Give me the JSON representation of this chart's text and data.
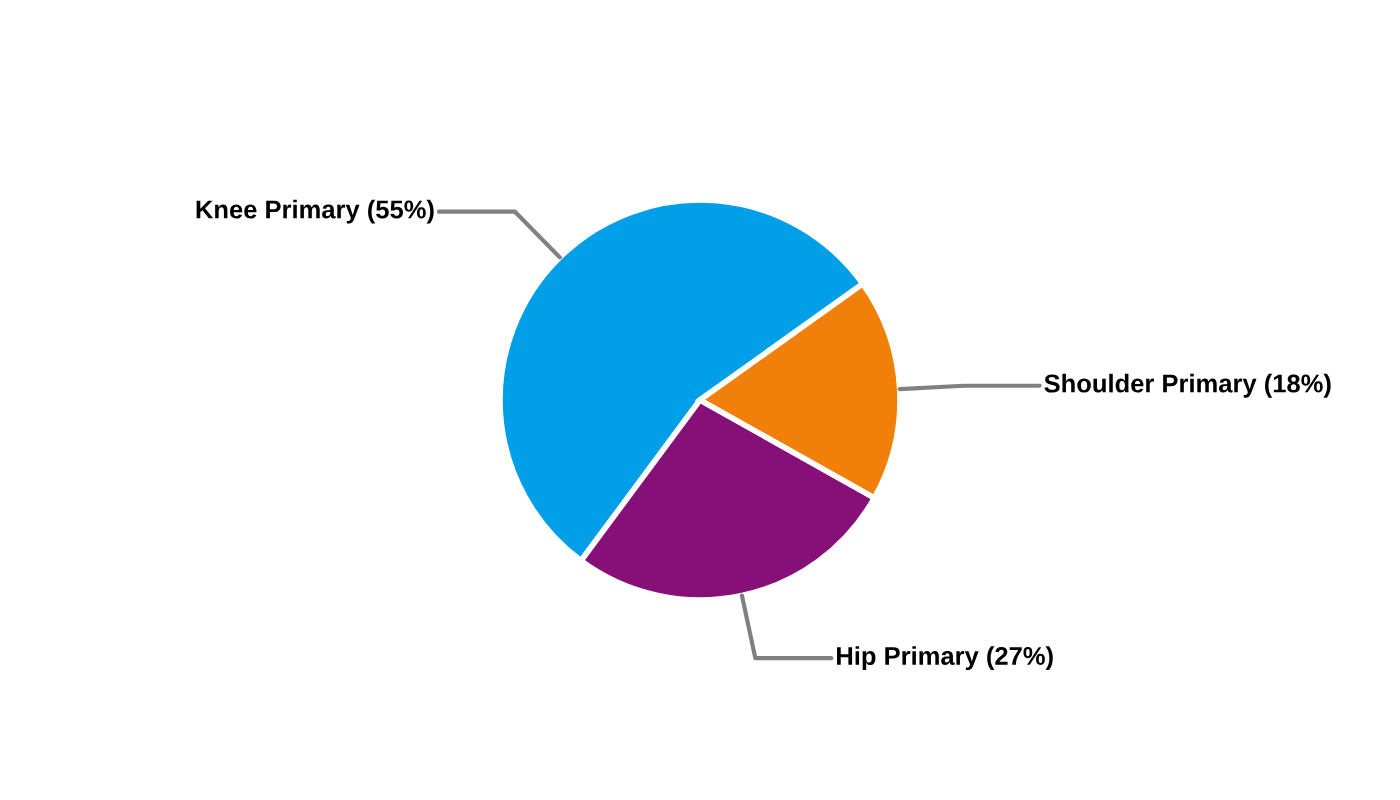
{
  "chart_data": {
    "type": "pie",
    "categories": [
      "Knee Primary (55%)",
      "Hip Primary (27%)",
      "Shoulder Primary (18%)"
    ],
    "values": [
      55,
      27,
      18
    ],
    "colors": [
      "#019fe8",
      "#870f78",
      "#f0800a"
    ]
  }
}
